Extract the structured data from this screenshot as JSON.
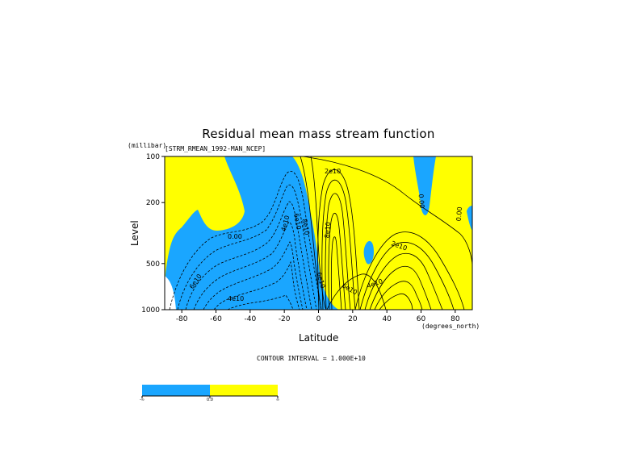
{
  "chart_data": {
    "type": "contour",
    "title": "Residual mean mass stream function",
    "dataset_label": "[STRM_RMEAN_1992-MAN_NCEP]",
    "y_units": "(millibar)",
    "ylabel": "Level",
    "xlabel": "Latitude",
    "x_units": "(degrees_north)",
    "xlim": [
      -90,
      90
    ],
    "ylim": [
      1000,
      100
    ],
    "y_scale": "log",
    "x_ticks": [
      "-80",
      "-60",
      "-40",
      "-20",
      "0",
      "20",
      "40",
      "60",
      "80"
    ],
    "x_tick_values": [
      -80,
      -60,
      -40,
      -20,
      0,
      20,
      40,
      60,
      80
    ],
    "y_ticks": [
      "100",
      "200",
      "500",
      "1000"
    ],
    "y_tick_values": [
      100,
      200,
      500,
      1000
    ],
    "contour_interval_text": "CONTOUR INTERVAL = 1.000E+10",
    "contour_labels": [
      "2e10",
      "0.00",
      "4e10",
      "6e10",
      "4e10",
      "6e10",
      "8e10",
      "6e10",
      "4e10",
      "2e10",
      "0.00",
      "0.00",
      "8e10",
      "6e10"
    ],
    "colors": {
      "negative": "#1aa6ff",
      "positive": "#ffff00",
      "lines": "#000000"
    },
    "colorbar_labels": [
      "-∞",
      "0.0",
      "∞"
    ]
  }
}
